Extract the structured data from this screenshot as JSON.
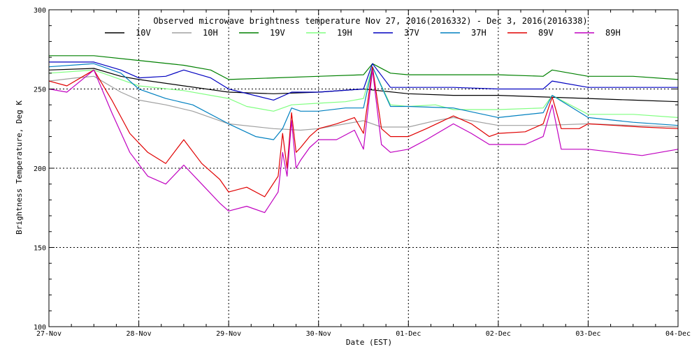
{
  "chart_data": {
    "type": "line",
    "title": "Observed microwave brightness temperature Nov 27, 2016(2016332) - Dec  3, 2016(2016338)",
    "xlabel": "Date (EST)",
    "ylabel": "Brightness Temperature, Deg K",
    "ylim": [
      100,
      300
    ],
    "xlim": [
      0,
      7
    ],
    "yticks": [
      100,
      150,
      200,
      250,
      300
    ],
    "xticks": [
      {
        "x": 0,
        "label": "27-Nov"
      },
      {
        "x": 1,
        "label": "28-Nov"
      },
      {
        "x": 2,
        "label": "29-Nov"
      },
      {
        "x": 3,
        "label": "30-Nov"
      },
      {
        "x": 4,
        "label": "01-Dec"
      },
      {
        "x": 5,
        "label": "02-Dec"
      },
      {
        "x": 6,
        "label": "03-Dec"
      },
      {
        "x": 7,
        "label": "04-Dec"
      }
    ],
    "grid": true,
    "legend_position": "top",
    "series": [
      {
        "name": "10V",
        "color": "#000000",
        "x": [
          0,
          0.5,
          0.8,
          1.0,
          1.5,
          2.0,
          2.5,
          3.0,
          3.5,
          4.0,
          4.5,
          5.0,
          5.5,
          6.0,
          6.5,
          7.0
        ],
        "y": [
          262,
          263,
          258,
          256,
          252,
          248,
          247,
          248,
          250,
          247,
          246,
          246,
          245,
          244,
          243,
          242
        ]
      },
      {
        "name": "10H",
        "color": "#a0a0a0",
        "x": [
          0,
          0.3,
          0.5,
          0.8,
          1.0,
          1.3,
          1.6,
          2.0,
          2.5,
          2.8,
          3.0,
          3.3,
          3.5,
          3.7,
          4.0,
          4.3,
          4.5,
          5.0,
          5.5,
          6.0,
          6.5,
          7.0
        ],
        "y": [
          255,
          257,
          258,
          248,
          243,
          240,
          236,
          228,
          225,
          224,
          225,
          228,
          230,
          226,
          226,
          230,
          232,
          227,
          227,
          228,
          227,
          226
        ]
      },
      {
        "name": "19V",
        "color": "#008000",
        "x": [
          0,
          0.5,
          1.0,
          1.5,
          1.8,
          2.0,
          2.5,
          3.0,
          3.5,
          3.6,
          3.8,
          4.0,
          4.5,
          5.0,
          5.5,
          5.6,
          6.0,
          6.5,
          7.0
        ],
        "y": [
          271,
          271,
          268,
          265,
          262,
          256,
          257,
          258,
          259,
          266,
          260,
          259,
          259,
          259,
          258,
          262,
          258,
          258,
          256
        ]
      },
      {
        "name": "19H",
        "color": "#80ff80",
        "x": [
          0,
          0.5,
          0.8,
          1.0,
          1.5,
          2.0,
          2.2,
          2.5,
          2.7,
          3.0,
          3.3,
          3.5,
          3.6,
          3.8,
          4.0,
          4.3,
          4.5,
          5.0,
          5.5,
          5.6,
          6.0,
          6.5,
          7.0
        ],
        "y": [
          260,
          262,
          256,
          252,
          249,
          244,
          239,
          236,
          240,
          241,
          242,
          244,
          264,
          240,
          239,
          240,
          237,
          237,
          238,
          246,
          234,
          234,
          232
        ]
      },
      {
        "name": "37V",
        "color": "#0000c0",
        "x": [
          0,
          0.5,
          0.8,
          1.0,
          1.3,
          1.5,
          1.8,
          2.0,
          2.5,
          2.7,
          3.0,
          3.5,
          3.6,
          3.8,
          4.0,
          4.5,
          5.0,
          5.5,
          5.6,
          6.0,
          6.5,
          7.0
        ],
        "y": [
          267,
          267,
          262,
          257,
          258,
          262,
          257,
          250,
          243,
          248,
          248,
          250,
          266,
          251,
          251,
          251,
          250,
          250,
          255,
          251,
          251,
          251
        ]
      },
      {
        "name": "37H",
        "color": "#0080c0",
        "x": [
          0,
          0.5,
          0.8,
          1.0,
          1.3,
          1.6,
          2.0,
          2.3,
          2.5,
          2.6,
          2.7,
          2.8,
          3.0,
          3.3,
          3.5,
          3.6,
          3.8,
          4.0,
          4.5,
          5.0,
          5.5,
          5.6,
          6.0,
          6.5,
          7.0
        ],
        "y": [
          264,
          266,
          260,
          250,
          244,
          240,
          228,
          220,
          218,
          225,
          238,
          236,
          236,
          238,
          238,
          264,
          239,
          239,
          238,
          232,
          235,
          246,
          232,
          229,
          227
        ]
      },
      {
        "name": "89V",
        "color": "#e00000",
        "x": [
          0,
          0.2,
          0.5,
          0.7,
          0.9,
          1.1,
          1.3,
          1.5,
          1.7,
          1.9,
          2.0,
          2.2,
          2.4,
          2.55,
          2.6,
          2.65,
          2.7,
          2.75,
          2.8,
          2.9,
          3.0,
          3.2,
          3.4,
          3.5,
          3.6,
          3.7,
          3.8,
          4.0,
          4.2,
          4.5,
          4.7,
          4.9,
          5.0,
          5.3,
          5.5,
          5.6,
          5.7,
          5.9,
          6.0,
          6.3,
          6.6,
          7.0
        ],
        "y": [
          255,
          252,
          262,
          243,
          222,
          210,
          203,
          218,
          203,
          193,
          185,
          188,
          182,
          195,
          222,
          200,
          235,
          210,
          213,
          220,
          225,
          228,
          232,
          222,
          264,
          225,
          220,
          220,
          225,
          233,
          228,
          220,
          222,
          223,
          228,
          245,
          225,
          225,
          228,
          227,
          226,
          225
        ]
      },
      {
        "name": "89H",
        "color": "#c000c0",
        "x": [
          0,
          0.2,
          0.5,
          0.7,
          0.9,
          1.1,
          1.3,
          1.5,
          1.7,
          1.9,
          2.0,
          2.2,
          2.4,
          2.55,
          2.6,
          2.65,
          2.7,
          2.75,
          2.8,
          2.9,
          3.0,
          3.2,
          3.4,
          3.5,
          3.6,
          3.7,
          3.8,
          4.0,
          4.2,
          4.5,
          4.7,
          4.9,
          5.0,
          5.3,
          5.5,
          5.6,
          5.7,
          5.9,
          6.0,
          6.3,
          6.6,
          7.0
        ],
        "y": [
          250,
          248,
          262,
          235,
          210,
          195,
          190,
          202,
          190,
          178,
          173,
          176,
          172,
          185,
          210,
          195,
          230,
          200,
          205,
          213,
          218,
          218,
          224,
          212,
          262,
          215,
          210,
          212,
          218,
          228,
          222,
          215,
          215,
          215,
          220,
          240,
          212,
          212,
          212,
          210,
          208,
          212
        ]
      }
    ]
  }
}
